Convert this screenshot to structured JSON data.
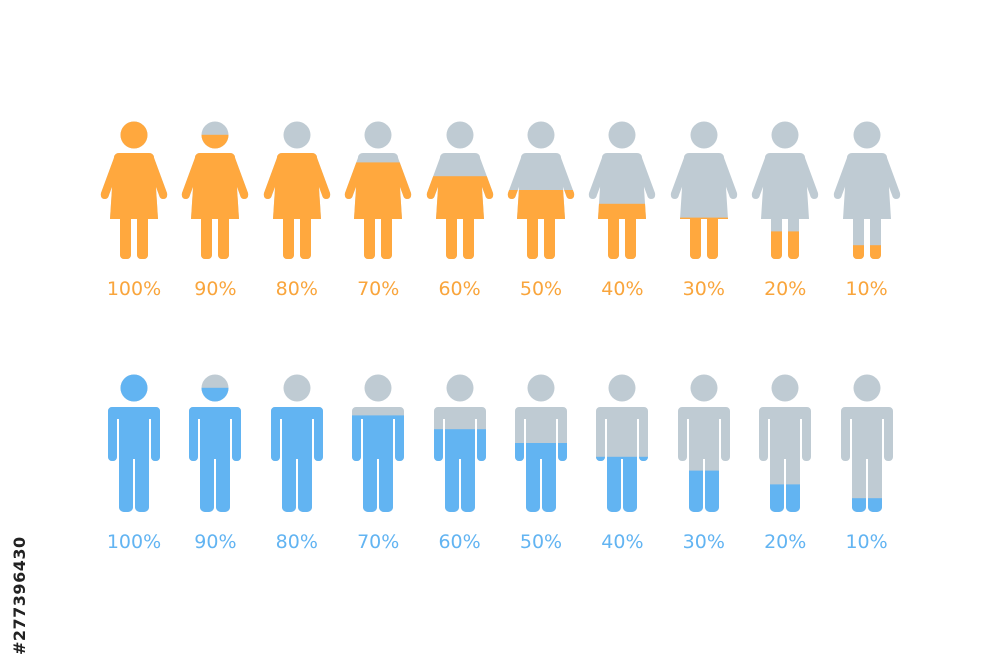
{
  "chart_data": {
    "type": "pictogram",
    "rows": [
      {
        "figure": "female",
        "color": "#FFA83E",
        "label_color": "#F9A53C",
        "values": [
          100,
          90,
          80,
          70,
          60,
          50,
          40,
          30,
          20,
          10
        ],
        "labels": [
          "100%",
          "90%",
          "80%",
          "70%",
          "60%",
          "50%",
          "40%",
          "30%",
          "20%",
          "10%"
        ]
      },
      {
        "figure": "male",
        "color": "#62B4F2",
        "label_color": "#62B4F2",
        "values": [
          100,
          90,
          80,
          70,
          60,
          50,
          40,
          30,
          20,
          10
        ],
        "labels": [
          "100%",
          "90%",
          "80%",
          "70%",
          "60%",
          "50%",
          "40%",
          "30%",
          "20%",
          "10%"
        ]
      }
    ],
    "empty_color": "#BFCBD3"
  },
  "watermark": "#277396430"
}
